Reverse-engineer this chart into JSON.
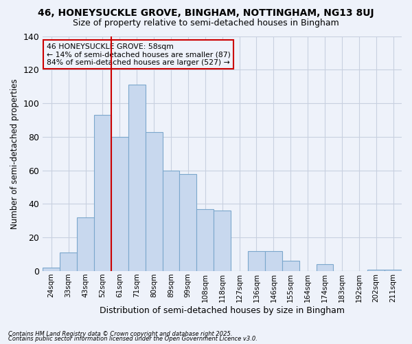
{
  "title": "46, HONEYSUCKLE GROVE, BINGHAM, NOTTINGHAM, NG13 8UJ",
  "subtitle": "Size of property relative to semi-detached houses in Bingham",
  "xlabel": "Distribution of semi-detached houses by size in Bingham",
  "ylabel": "Number of semi-detached properties",
  "bins": [
    "24sqm",
    "33sqm",
    "43sqm",
    "52sqm",
    "61sqm",
    "71sqm",
    "80sqm",
    "89sqm",
    "99sqm",
    "108sqm",
    "118sqm",
    "127sqm",
    "136sqm",
    "146sqm",
    "155sqm",
    "164sqm",
    "174sqm",
    "183sqm",
    "192sqm",
    "202sqm",
    "211sqm"
  ],
  "values": [
    2,
    11,
    32,
    93,
    80,
    111,
    83,
    60,
    58,
    37,
    36,
    0,
    12,
    12,
    6,
    0,
    4,
    0,
    0,
    1,
    1
  ],
  "bar_fill_color": "#c8d8ee",
  "bar_edge_color": "#7ba7cc",
  "grid_color": "#c8d0e0",
  "background_color": "#eef2fa",
  "vline_color": "#cc0000",
  "vline_pos": 4,
  "annotation_title": "46 HONEYSUCKLE GROVE: 58sqm",
  "annotation_line1": "← 14% of semi-detached houses are smaller (87)",
  "annotation_line2": "84% of semi-detached houses are larger (527) →",
  "annotation_box_edgecolor": "#cc0000",
  "footnote1": "Contains HM Land Registry data © Crown copyright and database right 2025.",
  "footnote2": "Contains public sector information licensed under the Open Government Licence v3.0.",
  "ylim": [
    0,
    140
  ],
  "yticks": [
    0,
    20,
    40,
    60,
    80,
    100,
    120,
    140
  ]
}
